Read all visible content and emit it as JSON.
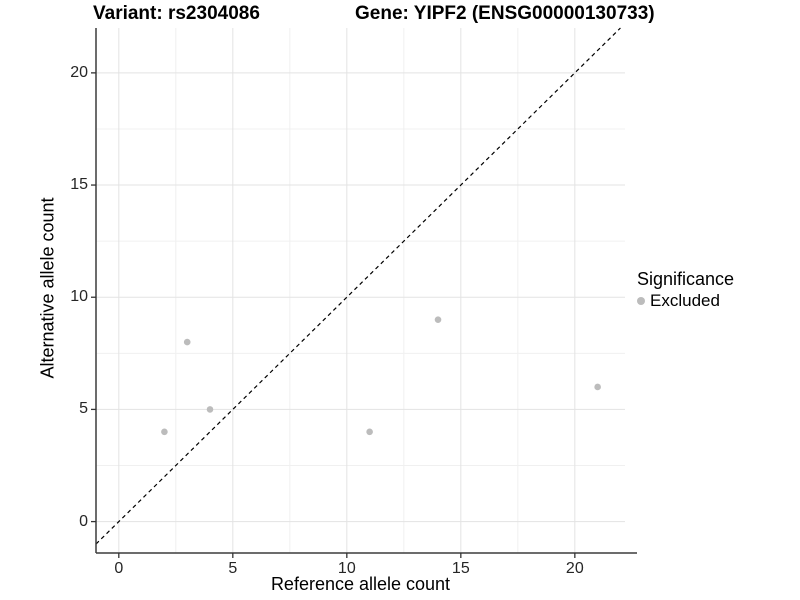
{
  "chart_data": {
    "type": "scatter",
    "title_left": "Variant: rs2304086",
    "title_right": "Gene: YIPF2 (ENSG00000130733)",
    "xlabel": "Reference allele count",
    "ylabel": "Alternative allele count",
    "xlim": [
      -1.0,
      22.2
    ],
    "ylim": [
      -1.4,
      22.0
    ],
    "x_ticks": [
      0,
      5,
      10,
      15,
      20
    ],
    "y_ticks": [
      0,
      5,
      10,
      15,
      20
    ],
    "x_minor_gridlines": [
      2.5,
      7.5,
      12.5,
      17.5
    ],
    "y_minor_gridlines": [
      2.5,
      7.5,
      12.5,
      17.5
    ],
    "grid": true,
    "series": [
      {
        "name": "Excluded",
        "color": "#bcbcbc",
        "points": [
          [
            2,
            4
          ],
          [
            3,
            8
          ],
          [
            4,
            5
          ],
          [
            11,
            4
          ],
          [
            14,
            9
          ],
          [
            21,
            6
          ]
        ]
      }
    ],
    "abline": {
      "slope": 1,
      "intercept": 0,
      "linetype": "dashed",
      "color": "#000000"
    },
    "legend": {
      "title": "Significance",
      "position": "right",
      "items": [
        {
          "label": "Excluded",
          "color": "#bcbcbc"
        }
      ]
    },
    "colors": {
      "background": "#ffffff",
      "major_gridline": "#e3e3e3",
      "minor_gridline": "#f0f0f0",
      "axis_line": "#3c3c3c",
      "tick_mark": "#333333",
      "tick_text": "#262626",
      "point": "#bcbcbc"
    }
  }
}
